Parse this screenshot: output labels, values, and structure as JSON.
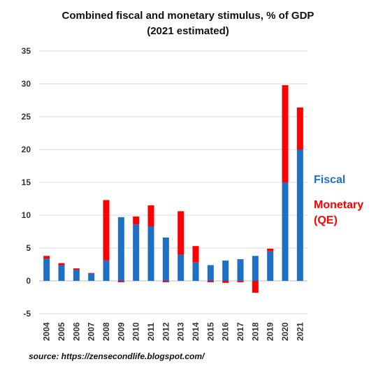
{
  "title_line1": "Combined fiscal and monetary stimulus, % of GDP",
  "title_line2": "(2021 estimated)",
  "source": "source: https://zensecondlife.blogspot.com/",
  "legend": {
    "fiscal": "Fiscal",
    "monetary_line1": "Monetary",
    "monetary_line2": "(QE)"
  },
  "colors": {
    "fiscal": "#1F6FC5",
    "monetary": "#FF0000",
    "grid": "#D9D9D9"
  },
  "chart_data": {
    "type": "bar",
    "stacked": true,
    "title": "Combined fiscal and monetary stimulus, % of GDP (2021 estimated)",
    "xlabel": "",
    "ylabel": "",
    "ylim": [
      -5,
      35
    ],
    "yticks": [
      -5,
      0,
      5,
      10,
      15,
      20,
      25,
      30,
      35
    ],
    "grid": "horizontal",
    "legend_position": "right",
    "categories": [
      "2004",
      "2005",
      "2006",
      "2007",
      "2008",
      "2009",
      "2010",
      "2011",
      "2012",
      "2013",
      "2014",
      "2015",
      "2016",
      "2017",
      "2018",
      "2019",
      "2020",
      "2021"
    ],
    "series": [
      {
        "name": "Fiscal",
        "color": "#1F6FC5",
        "values": [
          3.4,
          2.4,
          1.7,
          1.1,
          3.1,
          9.7,
          8.6,
          8.3,
          6.6,
          4.0,
          2.8,
          2.4,
          3.1,
          3.3,
          3.8,
          4.5,
          15.0,
          20.0
        ]
      },
      {
        "name": "Monetary (QE)",
        "color": "#FF0000",
        "values": [
          0.4,
          0.3,
          0.2,
          0.1,
          9.2,
          -0.2,
          1.2,
          3.2,
          -0.2,
          6.6,
          2.5,
          -0.2,
          -0.3,
          -0.2,
          -1.8,
          0.4,
          14.8,
          6.4
        ]
      }
    ]
  }
}
